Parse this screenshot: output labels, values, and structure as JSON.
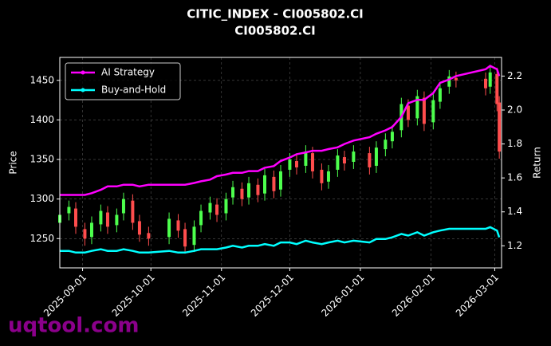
{
  "chart_data": {
    "type": "candlestick",
    "title": "CITIC_INDEX - CI005802.CI",
    "subtitle": "CI005802.CI",
    "ylabel": "Price",
    "y2label": "Return",
    "watermark": "uqtool.com",
    "x": [
      "2025-08-22",
      "2025-08-26",
      "2025-08-29",
      "2025-09-02",
      "2025-09-05",
      "2025-09-09",
      "2025-09-12",
      "2025-09-16",
      "2025-09-19",
      "2025-09-23",
      "2025-09-26",
      "2025-09-30",
      "2025-10-09",
      "2025-10-13",
      "2025-10-16",
      "2025-10-20",
      "2025-10-23",
      "2025-10-27",
      "2025-10-30",
      "2025-11-03",
      "2025-11-06",
      "2025-11-10",
      "2025-11-13",
      "2025-11-17",
      "2025-11-20",
      "2025-11-24",
      "2025-11-27",
      "2025-12-01",
      "2025-12-04",
      "2025-12-08",
      "2025-12-11",
      "2025-12-15",
      "2025-12-18",
      "2025-12-22",
      "2025-12-25",
      "2025-12-29",
      "2026-01-05",
      "2026-01-08",
      "2026-01-12",
      "2026-01-15",
      "2026-01-19",
      "2026-01-22",
      "2026-01-26",
      "2026-01-29",
      "2026-02-02",
      "2026-02-05",
      "2026-02-09",
      "2026-02-12",
      "2026-02-25",
      "2026-02-27",
      "2026-03-02",
      "2026-03-03"
    ],
    "open": [
      1270,
      1282,
      1288,
      1262,
      1252,
      1268,
      1283,
      1267,
      1282,
      1298,
      1272,
      1257,
      1252,
      1273,
      1262,
      1242,
      1267,
      1283,
      1293,
      1282,
      1302,
      1313,
      1302,
      1318,
      1307,
      1328,
      1312,
      1337,
      1348,
      1342,
      1358,
      1337,
      1322,
      1337,
      1353,
      1347,
      1358,
      1342,
      1363,
      1373,
      1387,
      1418,
      1402,
      1428,
      1397,
      1423,
      1442,
      1453,
      1452,
      1442,
      1458,
      1422
    ],
    "high": [
      1290,
      1298,
      1296,
      1270,
      1278,
      1293,
      1291,
      1288,
      1308,
      1306,
      1280,
      1265,
      1283,
      1281,
      1270,
      1273,
      1293,
      1303,
      1301,
      1308,
      1323,
      1321,
      1328,
      1326,
      1338,
      1336,
      1343,
      1358,
      1356,
      1368,
      1366,
      1345,
      1343,
      1363,
      1361,
      1368,
      1366,
      1373,
      1383,
      1393,
      1428,
      1426,
      1438,
      1436,
      1433,
      1448,
      1463,
      1461,
      1460,
      1468,
      1466,
      1430
    ],
    "low": [
      1262,
      1273,
      1256,
      1241,
      1243,
      1259,
      1256,
      1258,
      1273,
      1261,
      1246,
      1241,
      1243,
      1251,
      1231,
      1233,
      1258,
      1274,
      1271,
      1273,
      1293,
      1291,
      1293,
      1296,
      1298,
      1301,
      1303,
      1328,
      1331,
      1333,
      1326,
      1311,
      1313,
      1328,
      1336,
      1338,
      1331,
      1333,
      1354,
      1364,
      1378,
      1391,
      1393,
      1386,
      1388,
      1414,
      1433,
      1441,
      1431,
      1433,
      1411,
      1351
    ],
    "close": [
      1280,
      1290,
      1265,
      1250,
      1270,
      1285,
      1265,
      1280,
      1300,
      1270,
      1255,
      1250,
      1275,
      1260,
      1240,
      1265,
      1285,
      1295,
      1280,
      1300,
      1315,
      1300,
      1320,
      1305,
      1330,
      1310,
      1335,
      1350,
      1340,
      1360,
      1335,
      1320,
      1335,
      1355,
      1345,
      1360,
      1340,
      1365,
      1375,
      1385,
      1420,
      1400,
      1430,
      1395,
      1425,
      1440,
      1455,
      1450,
      1440,
      1460,
      1420,
      1360
    ],
    "up_color": "#4dff4d",
    "down_color": "#ff4d4d",
    "series": [
      {
        "name": "AI Strategy",
        "color": "#ff00ff",
        "axis": "y2",
        "values": [
          1.5,
          1.5,
          1.5,
          1.5,
          1.51,
          1.53,
          1.55,
          1.55,
          1.56,
          1.56,
          1.55,
          1.56,
          1.56,
          1.56,
          1.56,
          1.57,
          1.58,
          1.59,
          1.61,
          1.62,
          1.63,
          1.63,
          1.64,
          1.64,
          1.66,
          1.67,
          1.7,
          1.72,
          1.74,
          1.75,
          1.76,
          1.76,
          1.77,
          1.78,
          1.8,
          1.82,
          1.84,
          1.86,
          1.88,
          1.9,
          1.96,
          2.04,
          2.06,
          2.06,
          2.1,
          2.16,
          2.18,
          2.2,
          2.24,
          2.26,
          2.24,
          2.2
        ]
      },
      {
        "name": "Buy-and-Hold",
        "color": "#00ffff",
        "axis": "y2",
        "values": [
          1.17,
          1.17,
          1.16,
          1.16,
          1.17,
          1.18,
          1.17,
          1.17,
          1.18,
          1.17,
          1.16,
          1.16,
          1.17,
          1.16,
          1.16,
          1.17,
          1.18,
          1.18,
          1.18,
          1.19,
          1.2,
          1.19,
          1.2,
          1.2,
          1.21,
          1.2,
          1.22,
          1.22,
          1.21,
          1.23,
          1.22,
          1.21,
          1.22,
          1.23,
          1.22,
          1.23,
          1.22,
          1.24,
          1.24,
          1.25,
          1.27,
          1.26,
          1.28,
          1.26,
          1.28,
          1.29,
          1.3,
          1.3,
          1.3,
          1.31,
          1.29,
          1.25
        ]
      }
    ],
    "xlim": [
      "2025-08-22",
      "2026-03-04"
    ],
    "xticks": [
      "2025-09-01",
      "2025-10-01",
      "2025-11-01",
      "2025-12-01",
      "2026-01-01",
      "2026-02-01",
      "2026-03-01"
    ],
    "ylim": [
      1213,
      1479
    ],
    "yticks": [
      1250,
      1300,
      1350,
      1400,
      1450
    ],
    "y2lim": [
      1.07,
      2.31
    ],
    "y2ticks": [
      1.2,
      1.4,
      1.6,
      1.8,
      {
        "value": 2,
        "label": "2.0"
      },
      2.2
    ],
    "grid": true,
    "legend": "upper left"
  }
}
